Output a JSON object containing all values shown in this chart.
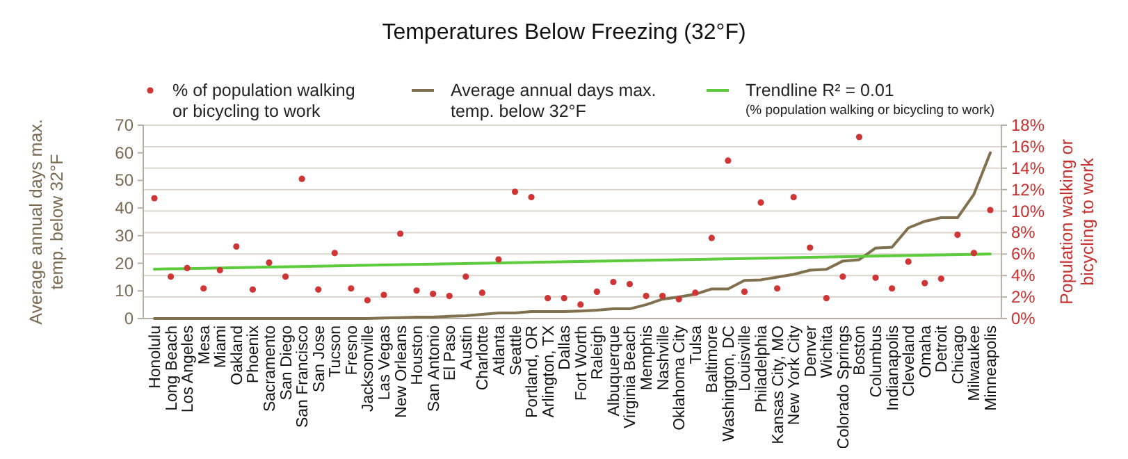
{
  "chart_data": {
    "type": "line",
    "title": "Temperatures Below Freezing (32°F)",
    "ylabel": "Average annual days max. temp. below 32°F",
    "y2label": "Population walking or bicycling to work",
    "categories": [
      "Honolulu",
      "Long Beach",
      "Los Angeles",
      "Mesa",
      "Miami",
      "Oakland",
      "Phoenix",
      "Sacramento",
      "San Diego",
      "San Francisco",
      "San Jose",
      "Tucson",
      "Fresno",
      "Jacksonville",
      "Las Vegas",
      "New Orleans",
      "Houston",
      "San Antonio",
      "El Paso",
      "Austin",
      "Charlotte",
      "Atlanta",
      "Seattle",
      "Portland, OR",
      "Arlington, TX",
      "Dallas",
      "Fort Worth",
      "Raleigh",
      "Albuquerque",
      "Virginia Beach",
      "Memphis",
      "Nashville",
      "Oklahoma City",
      "Tulsa",
      "Baltimore",
      "Washington, DC",
      "Louisville",
      "Philadelphia",
      "Kansas City, MO",
      "New York City",
      "Denver",
      "Wichita",
      "Colorado Springs",
      "Boston",
      "Columbus",
      "Indianapolis",
      "Cleveland",
      "Omaha",
      "Detroit",
      "Chicago",
      "Milwaukee",
      "Minneapolis"
    ],
    "series": [
      {
        "name": "% of population walking or bicycling to work",
        "type": "scatter",
        "axis": "y2",
        "marker": "circle",
        "color": "#d03535",
        "values": [
          11.2,
          3.9,
          4.7,
          2.8,
          4.5,
          6.7,
          2.7,
          5.2,
          3.9,
          13.0,
          2.7,
          6.1,
          2.8,
          1.7,
          2.2,
          7.9,
          2.6,
          2.3,
          2.1,
          3.9,
          2.4,
          5.5,
          11.8,
          11.3,
          1.9,
          1.9,
          1.3,
          2.5,
          3.4,
          3.2,
          2.1,
          2.1,
          1.8,
          2.4,
          7.5,
          14.7,
          2.5,
          10.8,
          2.8,
          11.3,
          6.6,
          1.9,
          3.9,
          16.9,
          3.8,
          2.8,
          5.3,
          3.3,
          3.7,
          7.8,
          6.1,
          10.1
        ]
      },
      {
        "name": "Average annual days max. temp. below 32°F",
        "color": "#80704f",
        "values": [
          0,
          0,
          0,
          0,
          0,
          0,
          0,
          0,
          0,
          0,
          0,
          0,
          0,
          0,
          0.2,
          0.3,
          0.5,
          0.5,
          0.8,
          1,
          1.5,
          2,
          2,
          2.5,
          2.5,
          2.5,
          2.7,
          3,
          3.5,
          3.5,
          5,
          7,
          7.8,
          8.8,
          10.7,
          10.7,
          13.8,
          14,
          15,
          16,
          17.5,
          17.8,
          20.8,
          21.3,
          25.5,
          25.8,
          32.8,
          35.2,
          36.5,
          36.5,
          45,
          60
        ]
      },
      {
        "name": "Trendline R² = 0.01",
        "type": "line",
        "axis": "y2",
        "color": "#5ccc3c",
        "x": [
          "Honolulu",
          "Minneapolis"
        ],
        "values": [
          4.6,
          6.0
        ]
      }
    ],
    "annotations": [
      "(% population walking or bicycling to work)"
    ],
    "ylim": [
      0,
      70
    ],
    "yticks": [
      0,
      10,
      20,
      30,
      40,
      50,
      60,
      70
    ],
    "y2lim": [
      0,
      18
    ],
    "y2ticks": [
      {
        "value": 0,
        "label": "0%"
      },
      {
        "value": 2,
        "label": "2%"
      },
      {
        "value": 4,
        "label": "4%"
      },
      {
        "value": 6,
        "label": "6%"
      },
      {
        "value": 8,
        "label": "8%"
      },
      {
        "value": 10,
        "label": "10%"
      },
      {
        "value": 12,
        "label": "12%"
      },
      {
        "value": 14,
        "label": "14%"
      },
      {
        "value": 16,
        "label": "16%"
      },
      {
        "value": 18,
        "label": "18%"
      }
    ],
    "grid": "y",
    "legend": "top",
    "line_style": "solid"
  }
}
